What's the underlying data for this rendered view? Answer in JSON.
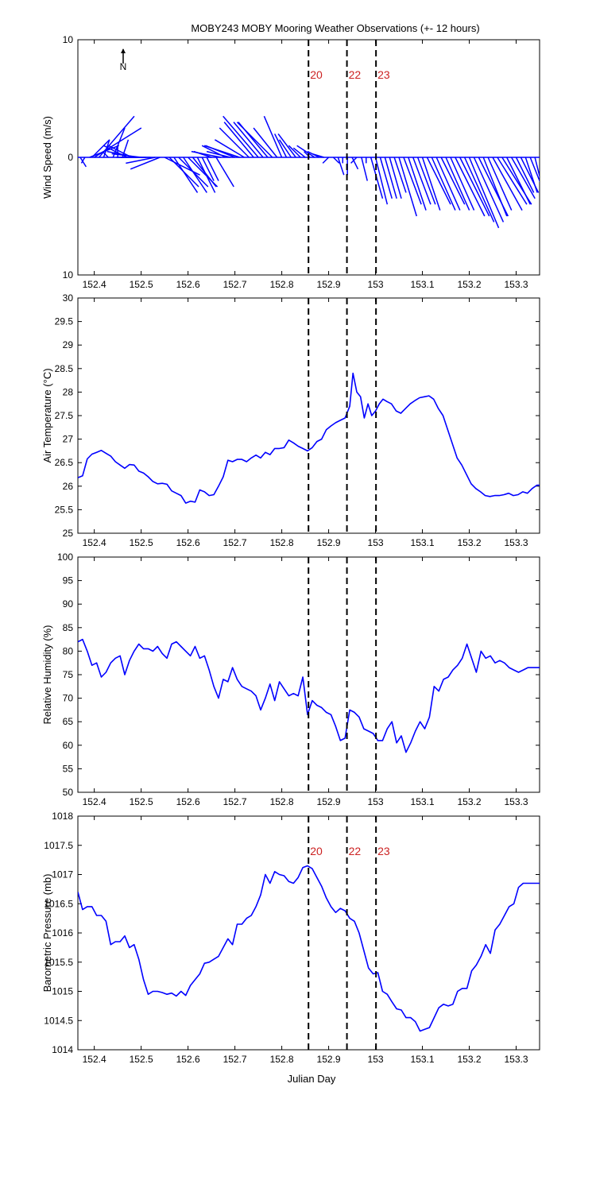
{
  "figure": {
    "title": "MOBY243 MOBY Mooring Weather Observations (+- 12 hours)",
    "xlabel": "Julian Day"
  },
  "colors": {
    "line": "#0000ff",
    "marker": "#000000",
    "marker_label": "#cc2222",
    "axes": "#000000",
    "background": "#ffffff"
  },
  "markers": [
    {
      "day": 152.857,
      "label": "20"
    },
    {
      "day": 152.939,
      "label": "22"
    },
    {
      "day": 153.001,
      "label": "23"
    }
  ],
  "chart_data": [
    {
      "type": "line",
      "name": "wind",
      "subtype": "vector-stick",
      "ylabel": "Wind Speed (m/s)",
      "xlim": [
        152.365,
        153.35
      ],
      "ylim": [
        -10,
        10
      ],
      "yticklabels": [
        "10",
        "0",
        "10"
      ],
      "xticks": [
        152.4,
        152.5,
        152.6,
        152.7,
        152.8,
        152.9,
        153,
        153.1,
        153.2,
        153.3
      ],
      "north_arrow_label": "N",
      "show_marker_labels": true,
      "x": [
        152.365,
        152.37,
        152.38,
        152.39,
        152.395,
        152.4,
        152.41,
        152.42,
        152.43,
        152.44,
        152.45,
        152.46,
        152.47,
        152.48,
        152.49,
        152.5,
        152.51,
        152.52,
        152.53,
        152.54,
        152.55,
        152.56,
        152.57,
        152.58,
        152.59,
        152.6,
        152.61,
        152.62,
        152.63,
        152.64,
        152.65,
        152.66,
        152.67,
        152.68,
        152.69,
        152.7,
        152.71,
        152.72,
        152.73,
        152.74,
        152.75,
        152.76,
        152.77,
        152.78,
        152.79,
        152.8,
        152.81,
        152.82,
        152.83,
        152.84,
        152.85,
        152.86,
        152.87,
        152.88,
        152.89,
        152.9,
        152.91,
        152.92,
        152.93,
        152.94,
        152.95,
        152.96,
        152.97,
        152.98,
        152.99,
        153,
        153.01,
        153.02,
        153.03,
        153.04,
        153.05,
        153.06,
        153.07,
        153.08,
        153.09,
        153.1,
        153.11,
        153.12,
        153.13,
        153.14,
        153.15,
        153.16,
        153.17,
        153.18,
        153.19,
        153.2,
        153.21,
        153.22,
        153.23,
        153.24,
        153.25,
        153.26,
        153.27,
        153.28,
        153.29,
        153.3,
        153.31,
        153.32,
        153.33,
        153.34
      ],
      "u": [
        -0.5,
        0.5,
        -0.3,
        2.5,
        1.5,
        4,
        3,
        0.5,
        -0.5,
        1,
        0,
        0.5,
        -2,
        -2,
        -2.5,
        -2.5,
        -2.5,
        -2.5,
        -2.5,
        -2.5,
        3,
        2.5,
        2,
        2.5,
        2,
        2.5,
        2,
        1.5,
        1,
        1,
        -1.5,
        1.5,
        -2.5,
        -2,
        -2,
        -2.5,
        -3,
        -2.5,
        -2.5,
        -2.5,
        -3,
        -2.5,
        -2.5,
        -3,
        -2,
        -1.5,
        -1,
        -1,
        -1.5,
        -1,
        -1,
        -0.5,
        -1.5,
        -1,
        -1,
        -0.5,
        0.5,
        0.5,
        0,
        0,
        0.5,
        -0.5,
        0.5,
        0,
        1,
        1,
        1,
        1,
        1,
        1,
        1.5,
        1.5,
        1.5,
        1.5,
        1.5,
        1.5,
        2,
        2,
        2,
        2,
        2,
        2,
        2.5,
        2.5,
        2.5,
        2.5,
        2.5,
        2.5,
        2,
        2,
        2.5,
        2.5,
        2.5,
        2,
        2,
        1.5,
        1.5,
        1,
        1,
        0.5
      ],
      "v": [
        -1,
        -0.8,
        -0.5,
        1,
        1.5,
        2.5,
        3.5,
        1.5,
        0.5,
        2.5,
        1,
        1.5,
        1,
        1,
        0.5,
        0.3,
        0,
        0,
        -0.5,
        -1,
        -1.5,
        -2.5,
        -3,
        -2.5,
        -3,
        -2.5,
        -2.5,
        -3,
        -2,
        -2,
        0.5,
        -2.5,
        0.5,
        1,
        0.5,
        1,
        1,
        1.5,
        2.5,
        3,
        3.5,
        3,
        3,
        3,
        2.5,
        3.5,
        2,
        1.5,
        2,
        1,
        0.8,
        0.5,
        1,
        0.5,
        0.3,
        -0.5,
        -0.5,
        -1.5,
        -0.5,
        -1.5,
        -1,
        -0.5,
        -2,
        -0.5,
        -3.5,
        -4,
        -3.5,
        -3.5,
        -3.5,
        -3,
        -5,
        -4,
        -4.5,
        -4,
        -4,
        -4.5,
        -4,
        -4.5,
        -4.5,
        -4,
        -4.5,
        -4.5,
        -5,
        -5,
        -5.5,
        -6,
        -5.5,
        -5,
        -5,
        -4.5,
        -4.5,
        -4,
        -4,
        -4,
        -3.5,
        -3,
        -3,
        -3,
        -2.5,
        -2
      ]
    },
    {
      "type": "line",
      "name": "air_temperature",
      "ylabel": "Air Temperature (°C)",
      "xlim": [
        152.365,
        153.35
      ],
      "ylim": [
        25,
        30
      ],
      "yticks": [
        25,
        25.5,
        26,
        26.5,
        27,
        27.5,
        28,
        28.5,
        29,
        29.5,
        30
      ],
      "xticks": [
        152.4,
        152.5,
        152.6,
        152.7,
        152.8,
        152.9,
        153,
        153.1,
        153.2,
        153.3
      ],
      "show_marker_labels": false,
      "x": [
        152.365,
        152.375,
        152.385,
        152.395,
        152.405,
        152.415,
        152.425,
        152.435,
        152.445,
        152.455,
        152.465,
        152.475,
        152.485,
        152.495,
        152.505,
        152.515,
        152.525,
        152.535,
        152.545,
        152.555,
        152.565,
        152.575,
        152.585,
        152.595,
        152.605,
        152.615,
        152.625,
        152.635,
        152.645,
        152.655,
        152.665,
        152.675,
        152.685,
        152.695,
        152.705,
        152.715,
        152.725,
        152.735,
        152.745,
        152.755,
        152.765,
        152.775,
        152.785,
        152.795,
        152.805,
        152.815,
        152.825,
        152.835,
        152.845,
        152.855,
        152.865,
        152.875,
        152.885,
        152.895,
        152.905,
        152.915,
        152.925,
        152.935,
        152.945,
        152.952,
        152.96,
        152.968,
        152.976,
        152.984,
        152.992,
        153,
        153.008,
        153.016,
        153.024,
        153.034,
        153.044,
        153.054,
        153.064,
        153.074,
        153.084,
        153.094,
        153.104,
        153.114,
        153.124,
        153.134,
        153.144,
        153.154,
        153.164,
        153.174,
        153.184,
        153.194,
        153.204,
        153.214,
        153.224,
        153.234,
        153.244,
        153.254,
        153.264,
        153.274,
        153.284,
        153.294,
        153.304,
        153.314,
        153.324,
        153.334,
        153.344,
        153.35
      ],
      "y": [
        26.18,
        26.22,
        26.58,
        26.68,
        26.72,
        26.76,
        26.7,
        26.64,
        26.52,
        26.45,
        26.38,
        26.46,
        26.45,
        26.32,
        26.28,
        26.2,
        26.1,
        26.05,
        26.06,
        26.04,
        25.9,
        25.85,
        25.8,
        25.64,
        25.68,
        25.66,
        25.92,
        25.88,
        25.8,
        25.82,
        26.0,
        26.2,
        26.55,
        26.52,
        26.57,
        26.57,
        26.52,
        26.6,
        26.66,
        26.6,
        26.72,
        26.67,
        26.8,
        26.8,
        26.82,
        26.98,
        26.92,
        26.85,
        26.8,
        26.75,
        26.82,
        26.95,
        27.0,
        27.2,
        27.28,
        27.35,
        27.4,
        27.45,
        27.7,
        28.4,
        28.0,
        27.9,
        27.45,
        27.75,
        27.5,
        27.6,
        27.75,
        27.85,
        27.8,
        27.75,
        27.6,
        27.55,
        27.65,
        27.75,
        27.82,
        27.88,
        27.9,
        27.92,
        27.85,
        27.65,
        27.5,
        27.2,
        26.9,
        26.6,
        26.45,
        26.25,
        26.05,
        25.95,
        25.88,
        25.8,
        25.78,
        25.8,
        25.8,
        25.82,
        25.85,
        25.8,
        25.82,
        25.88,
        25.85,
        25.95,
        26.02,
        26.02
      ]
    },
    {
      "type": "line",
      "name": "relative_humidity",
      "ylabel": "Relative Humidity (%)",
      "xlim": [
        152.365,
        153.35
      ],
      "ylim": [
        50,
        100
      ],
      "yticks": [
        50,
        55,
        60,
        65,
        70,
        75,
        80,
        85,
        90,
        95,
        100
      ],
      "xticks": [
        152.4,
        152.5,
        152.6,
        152.7,
        152.8,
        152.9,
        153,
        153.1,
        153.2,
        153.3
      ],
      "show_marker_labels": false,
      "x": [
        152.365,
        152.375,
        152.385,
        152.395,
        152.405,
        152.415,
        152.425,
        152.435,
        152.445,
        152.455,
        152.465,
        152.475,
        152.485,
        152.495,
        152.505,
        152.515,
        152.525,
        152.535,
        152.545,
        152.555,
        152.565,
        152.575,
        152.585,
        152.595,
        152.605,
        152.615,
        152.625,
        152.635,
        152.645,
        152.655,
        152.665,
        152.675,
        152.685,
        152.695,
        152.705,
        152.715,
        152.725,
        152.735,
        152.745,
        152.755,
        152.765,
        152.775,
        152.785,
        152.795,
        152.805,
        152.815,
        152.825,
        152.835,
        152.845,
        152.855,
        152.865,
        152.875,
        152.885,
        152.895,
        152.905,
        152.915,
        152.925,
        152.935,
        152.945,
        152.955,
        152.965,
        152.975,
        152.985,
        152.995,
        153.005,
        153.015,
        153.025,
        153.035,
        153.045,
        153.055,
        153.065,
        153.075,
        153.085,
        153.095,
        153.105,
        153.115,
        153.125,
        153.135,
        153.145,
        153.155,
        153.165,
        153.175,
        153.185,
        153.195,
        153.205,
        153.215,
        153.225,
        153.235,
        153.245,
        153.255,
        153.265,
        153.275,
        153.285,
        153.295,
        153.305,
        153.315,
        153.325,
        153.335,
        153.345,
        153.35
      ],
      "y": [
        82,
        82.5,
        80,
        77,
        77.5,
        74.5,
        75.5,
        77.5,
        78.5,
        79,
        75,
        78,
        80,
        81.5,
        80.5,
        80.5,
        80,
        81,
        79.5,
        78.5,
        81.5,
        82,
        81,
        80,
        79,
        81,
        78.5,
        79,
        76,
        72.5,
        70,
        74,
        73.5,
        76.5,
        74,
        72.5,
        72,
        71.5,
        70.5,
        67.5,
        70,
        73,
        69.5,
        73.5,
        72,
        70.5,
        71,
        70.5,
        74.5,
        66.5,
        69.5,
        68.5,
        68,
        67,
        66.5,
        64,
        61,
        61.5,
        67.5,
        67,
        66,
        63.5,
        63,
        62.5,
        61,
        61,
        63.5,
        65,
        60.5,
        62,
        58.5,
        60.5,
        63,
        65,
        63.5,
        66,
        72.5,
        71.5,
        74,
        74.5,
        76,
        77,
        78.5,
        81.5,
        78.5,
        75.5,
        80,
        78.5,
        79,
        77.5,
        78,
        77.5,
        76.5,
        76,
        75.5,
        76,
        76.5,
        76.5,
        76.5,
        76.5
      ]
    },
    {
      "type": "line",
      "name": "barometric_pressure",
      "ylabel": "Barometric Pressure (mb)",
      "xlim": [
        152.365,
        153.35
      ],
      "ylim": [
        1014,
        1018
      ],
      "yticks": [
        1014,
        1014.5,
        1015,
        1015.5,
        1016,
        1016.5,
        1017,
        1017.5,
        1018
      ],
      "xticks": [
        152.4,
        152.5,
        152.6,
        152.7,
        152.8,
        152.9,
        153,
        153.1,
        153.2,
        153.3
      ],
      "show_marker_labels": true,
      "x": [
        152.365,
        152.375,
        152.385,
        152.395,
        152.405,
        152.415,
        152.425,
        152.435,
        152.445,
        152.455,
        152.465,
        152.475,
        152.485,
        152.495,
        152.505,
        152.515,
        152.525,
        152.535,
        152.545,
        152.555,
        152.565,
        152.575,
        152.585,
        152.595,
        152.605,
        152.615,
        152.625,
        152.635,
        152.645,
        152.655,
        152.665,
        152.675,
        152.685,
        152.695,
        152.705,
        152.715,
        152.725,
        152.735,
        152.745,
        152.755,
        152.765,
        152.775,
        152.785,
        152.795,
        152.805,
        152.815,
        152.825,
        152.835,
        152.845,
        152.855,
        152.865,
        152.875,
        152.885,
        152.895,
        152.905,
        152.915,
        152.925,
        152.935,
        152.945,
        152.955,
        152.965,
        152.975,
        152.985,
        152.995,
        153.005,
        153.015,
        153.025,
        153.035,
        153.045,
        153.055,
        153.065,
        153.075,
        153.085,
        153.095,
        153.105,
        153.115,
        153.125,
        153.135,
        153.145,
        153.155,
        153.165,
        153.175,
        153.185,
        153.195,
        153.205,
        153.215,
        153.225,
        153.235,
        153.245,
        153.255,
        153.265,
        153.275,
        153.285,
        153.295,
        153.305,
        153.315,
        153.325,
        153.335,
        153.345,
        153.35
      ],
      "y": [
        1016.7,
        1016.4,
        1016.45,
        1016.45,
        1016.3,
        1016.3,
        1016.2,
        1015.8,
        1015.85,
        1015.85,
        1015.95,
        1015.75,
        1015.8,
        1015.55,
        1015.2,
        1014.95,
        1015.0,
        1015.0,
        1014.98,
        1014.95,
        1014.97,
        1014.92,
        1015.0,
        1014.93,
        1015.1,
        1015.2,
        1015.3,
        1015.48,
        1015.5,
        1015.55,
        1015.6,
        1015.75,
        1015.9,
        1015.8,
        1016.15,
        1016.15,
        1016.25,
        1016.3,
        1016.45,
        1016.65,
        1017.0,
        1016.85,
        1017.05,
        1017.0,
        1016.98,
        1016.88,
        1016.85,
        1016.95,
        1017.12,
        1017.15,
        1017.1,
        1016.95,
        1016.8,
        1016.6,
        1016.45,
        1016.35,
        1016.42,
        1016.38,
        1016.25,
        1016.2,
        1016.0,
        1015.7,
        1015.4,
        1015.3,
        1015.32,
        1015.0,
        1014.95,
        1014.82,
        1014.7,
        1014.68,
        1014.55,
        1014.55,
        1014.48,
        1014.32,
        1014.35,
        1014.38,
        1014.55,
        1014.72,
        1014.78,
        1014.75,
        1014.78,
        1015.0,
        1015.05,
        1015.05,
        1015.35,
        1015.45,
        1015.6,
        1015.8,
        1015.65,
        1016.05,
        1016.15,
        1016.3,
        1016.45,
        1016.5,
        1016.78,
        1016.85,
        1016.85,
        1016.85,
        1016.85,
        1016.85
      ]
    }
  ]
}
